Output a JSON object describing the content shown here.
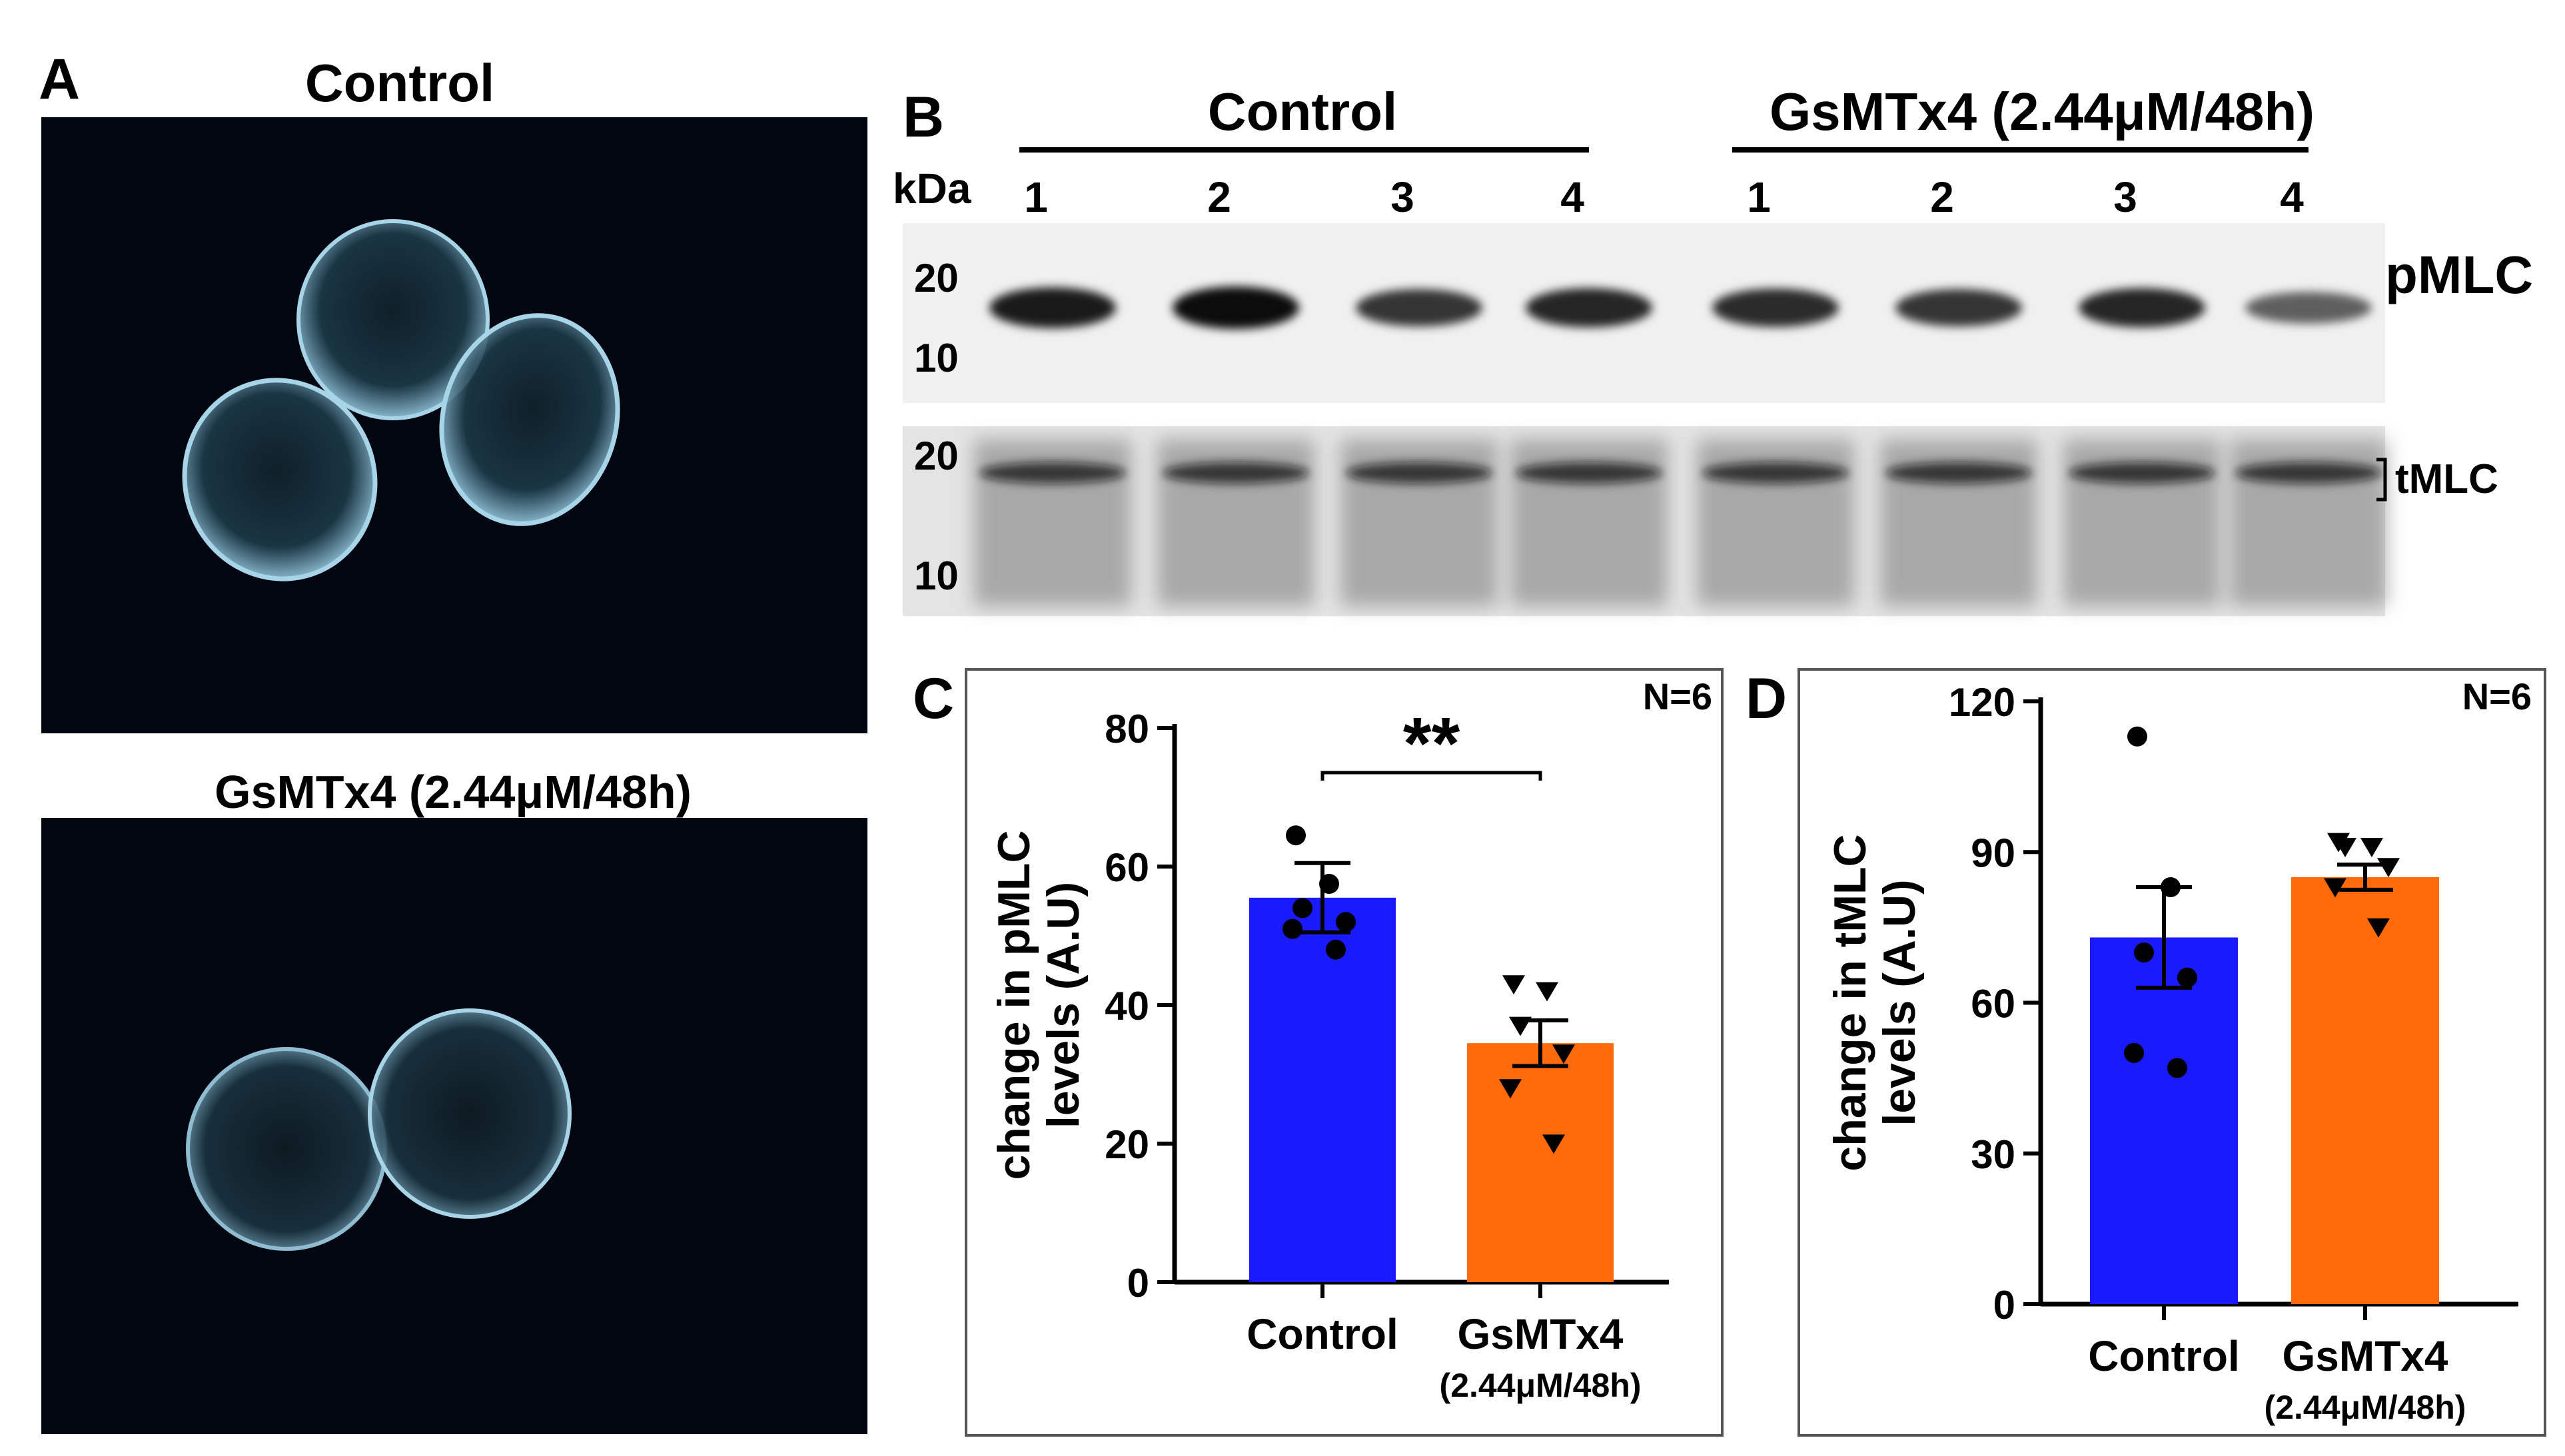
{
  "panel_letters": {
    "a": "A",
    "b": "B",
    "c": "C",
    "d": "D"
  },
  "panel_a": {
    "top_title": "Control",
    "bottom_title": "GsMTx4 (2.44μM/48h)"
  },
  "panel_b": {
    "group_control": "Control",
    "group_treated": "GsMTx4 (2.44μM/48h)",
    "kda_label": "kDa",
    "lane_numbers": [
      "1",
      "2",
      "3",
      "4",
      "1",
      "2",
      "3",
      "4"
    ],
    "marker_20": "20",
    "marker_10": "10",
    "band_pmlc": "pMLC",
    "band_tmlc": "tMLC",
    "pmlc_band_intensity": [
      0.9,
      1.0,
      0.72,
      0.82,
      0.78,
      0.72,
      0.82,
      0.42
    ]
  },
  "colors": {
    "control": "#1a1aff",
    "treated": "#ff6a0a"
  },
  "chart_data": [
    {
      "type": "bar",
      "panel": "C",
      "categories": [
        "Control",
        "GsMTx4"
      ],
      "category_sublabels": [
        "",
        "(2.44μM/48h)"
      ],
      "values": [
        55.5,
        34.5
      ],
      "sem": [
        5.0,
        3.3
      ],
      "points": [
        [
          64.5,
          57.5,
          54.0,
          52.0,
          51.0,
          48.0
        ],
        [
          43.0,
          42.0,
          37.0,
          33.0,
          28.0,
          20.0
        ]
      ],
      "ylabel": "change in pMLC levels (A.U)",
      "ylim": [
        0,
        80
      ],
      "yticks": [
        0,
        20,
        40,
        60,
        80
      ],
      "yticklabels": [
        "0",
        "20",
        "40",
        "60",
        "80"
      ],
      "annotation_n": "N=6",
      "significance": "**"
    },
    {
      "type": "bar",
      "panel": "D",
      "categories": [
        "Control",
        "GsMTx4"
      ],
      "category_sublabels": [
        "",
        "(2.44μM/48h)"
      ],
      "values": [
        73.0,
        85.0
      ],
      "sem": [
        10.0,
        2.5
      ],
      "points": [
        [
          113.0,
          83.0,
          70.0,
          65.0,
          50.0,
          47.0
        ],
        [
          92.0,
          91.0,
          91.0,
          87.0,
          83.0,
          75.0
        ]
      ],
      "ylabel": "change in tMLC levels (A.U)",
      "ylim": [
        0,
        120
      ],
      "yticks": [
        0,
        30,
        60,
        90,
        120
      ],
      "yticklabels": [
        "0",
        "30",
        "60",
        "90",
        "120"
      ],
      "annotation_n": "N=6"
    }
  ]
}
